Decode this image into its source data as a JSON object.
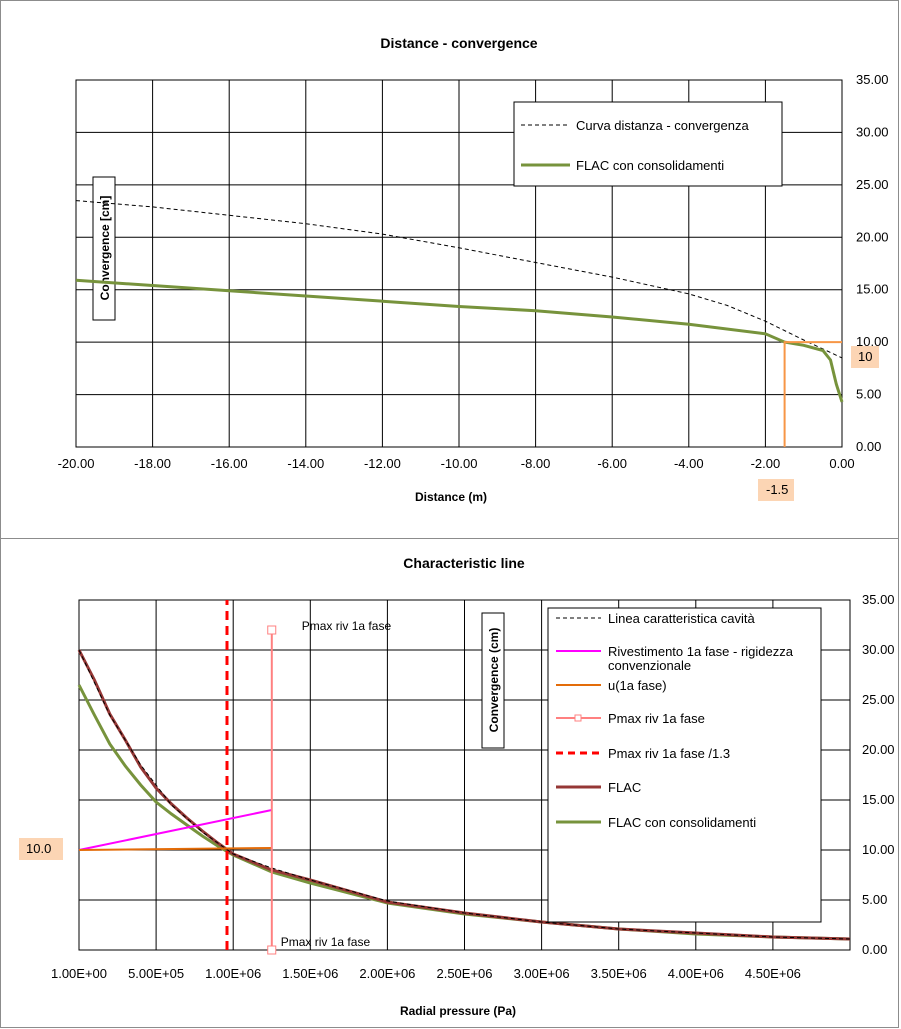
{
  "chart_data": [
    {
      "type": "line",
      "title": "Distance - convergence",
      "xlabel": "Distance (m)",
      "ylabel": "Convergence [cm]",
      "xlim": [
        -20,
        0
      ],
      "ylim": [
        0,
        35
      ],
      "x_ticks": [
        "-20.00",
        "-18.00",
        "-16.00",
        "-14.00",
        "-12.00",
        "-10.00",
        "-8.00",
        "-6.00",
        "-4.00",
        "-2.00",
        "0.00"
      ],
      "y_ticks": [
        "0.00",
        "5.00",
        "10.00",
        "15.00",
        "20.00",
        "25.00",
        "30.00",
        "35.00"
      ],
      "grid": true,
      "legend_position": "top-right",
      "series": [
        {
          "name": "Curva distanza - convergenza",
          "color": "#000000",
          "style": "dashed",
          "points": [
            [
              -20,
              23.5
            ],
            [
              -18,
              22.9
            ],
            [
              -16,
              22.1
            ],
            [
              -14,
              21.3
            ],
            [
              -12,
              20.3
            ],
            [
              -10,
              19.0
            ],
            [
              -8,
              17.6
            ],
            [
              -6,
              16.2
            ],
            [
              -4,
              14.6
            ],
            [
              -3,
              13.5
            ],
            [
              -2,
              12.0
            ],
            [
              -1,
              10.2
            ],
            [
              0,
              8.5
            ]
          ]
        },
        {
          "name": "FLAC con consolidamenti",
          "color": "#77933c",
          "style": "solid",
          "points": [
            [
              -20,
              15.9
            ],
            [
              -18,
              15.4
            ],
            [
              -16,
              14.9
            ],
            [
              -14,
              14.4
            ],
            [
              -12,
              13.9
            ],
            [
              -10,
              13.4
            ],
            [
              -8,
              13.0
            ],
            [
              -6,
              12.4
            ],
            [
              -4,
              11.7
            ],
            [
              -2,
              10.8
            ],
            [
              -1.5,
              10.0
            ],
            [
              -1,
              9.7
            ],
            [
              -0.5,
              9.2
            ],
            [
              -0.3,
              8.3
            ],
            [
              -0.15,
              6.0
            ],
            [
              0,
              4.3
            ]
          ]
        }
      ],
      "highlights": [
        {
          "color": "#f79646",
          "points": [
            [
              -1.5,
              0
            ],
            [
              -1.5,
              10
            ],
            [
              0,
              10
            ]
          ]
        }
      ],
      "highlight_labels": {
        "x": "-1.5",
        "y": "10"
      }
    },
    {
      "type": "line",
      "title": "Characteristic line",
      "xlabel": "Radial pressure (Pa)",
      "ylabel": "Convergence (cm)",
      "xlim": [
        1,
        5000000
      ],
      "ylim": [
        0,
        35
      ],
      "x_ticks": [
        {
          "v": 1,
          "label": "1.00E+00"
        },
        {
          "v": 500000,
          "label": "5.00E+05"
        },
        {
          "v": 1000000,
          "label": "1.00E+06"
        },
        {
          "v": 1500000,
          "label": "1.50E+06"
        },
        {
          "v": 2000000,
          "label": "2.00E+06"
        },
        {
          "v": 2500000,
          "label": "2.50E+06"
        },
        {
          "v": 3000000,
          "label": "3.00E+06"
        },
        {
          "v": 3500000,
          "label": "3.50E+06"
        },
        {
          "v": 4000000,
          "label": "4.00E+06"
        },
        {
          "v": 4500000,
          "label": "4.50E+06"
        }
      ],
      "y_ticks": [
        "0.00",
        "5.00",
        "10.00",
        "15.00",
        "20.00",
        "25.00",
        "30.00",
        "35.00"
      ],
      "grid": true,
      "legend_position": "right",
      "series": [
        {
          "name": "Linea caratteristica cavità",
          "color": "#000000",
          "style": "dashed",
          "points": [
            [
              0,
              30
            ],
            [
              200000,
              23.5
            ],
            [
              400000,
              18.5
            ],
            [
              600000,
              14.5
            ],
            [
              800000,
              11.8
            ],
            [
              1000000,
              9.6
            ],
            [
              1250000,
              8.2
            ],
            [
              1500000,
              7.0
            ],
            [
              2000000,
              4.9
            ],
            [
              2500000,
              3.7
            ],
            [
              3000000,
              2.8
            ],
            [
              3500000,
              2.1
            ],
            [
              4000000,
              1.7
            ],
            [
              4500000,
              1.3
            ],
            [
              5000000,
              1.1
            ]
          ]
        },
        {
          "name": "Rivestimento 1a fase - rigidezza convenzionale",
          "color": "#ff00ff",
          "style": "solid",
          "points": [
            [
              0,
              10
            ],
            [
              1250000,
              14
            ]
          ]
        },
        {
          "name": "u(1a fase)",
          "color": "#e36c09",
          "style": "solid",
          "points": [
            [
              0,
              10
            ],
            [
              1250000,
              10.2
            ]
          ]
        },
        {
          "name": "Pmax riv 1a fase",
          "color": "#ff8080",
          "style": "solid-marker",
          "points": [
            [
              1250000,
              0
            ],
            [
              1250000,
              32
            ]
          ]
        },
        {
          "name": "Pmax riv 1a fase /1.3",
          "color": "#ff0000",
          "style": "dashed",
          "points": [
            [
              960000,
              0
            ],
            [
              960000,
              35
            ]
          ]
        },
        {
          "name": "FLAC",
          "color": "#953735",
          "style": "solid",
          "points": [
            [
              0,
              30
            ],
            [
              100000,
              27
            ],
            [
              200000,
              23.6
            ],
            [
              300000,
              21
            ],
            [
              400000,
              18.3
            ],
            [
              500000,
              16.2
            ],
            [
              600000,
              14.6
            ],
            [
              700000,
              13.2
            ],
            [
              800000,
              11.9
            ],
            [
              900000,
              10.7
            ],
            [
              1000000,
              9.6
            ],
            [
              1250000,
              8.0
            ],
            [
              1500000,
              7.0
            ],
            [
              2000000,
              4.8
            ],
            [
              2500000,
              3.7
            ],
            [
              3000000,
              2.8
            ],
            [
              3500000,
              2.1
            ],
            [
              4000000,
              1.7
            ],
            [
              4500000,
              1.3
            ],
            [
              5000000,
              1.1
            ]
          ]
        },
        {
          "name": "FLAC con consolidamenti",
          "color": "#77933c",
          "style": "solid",
          "points": [
            [
              0,
              26.5
            ],
            [
              100000,
              23.5
            ],
            [
              200000,
              20.6
            ],
            [
              300000,
              18.4
            ],
            [
              400000,
              16.5
            ],
            [
              500000,
              14.8
            ],
            [
              600000,
              13.6
            ],
            [
              700000,
              12.5
            ],
            [
              800000,
              11.4
            ],
            [
              900000,
              10.4
            ],
            [
              1000000,
              9.5
            ],
            [
              1250000,
              7.8
            ],
            [
              1500000,
              6.7
            ],
            [
              2000000,
              4.7
            ],
            [
              2500000,
              3.6
            ],
            [
              3000000,
              2.8
            ],
            [
              3500000,
              2.1
            ],
            [
              4000000,
              1.6
            ],
            [
              4500000,
              1.3
            ],
            [
              5000000,
              1.1
            ]
          ]
        }
      ],
      "annotations": [
        {
          "text": "Pmax riv 1a fase",
          "x": 1250000,
          "y": 32
        },
        {
          "text": "Pmax riv 1a fase",
          "x": 1250000,
          "y": 0
        }
      ],
      "highlight_labels": {
        "y": "10.0"
      }
    }
  ]
}
